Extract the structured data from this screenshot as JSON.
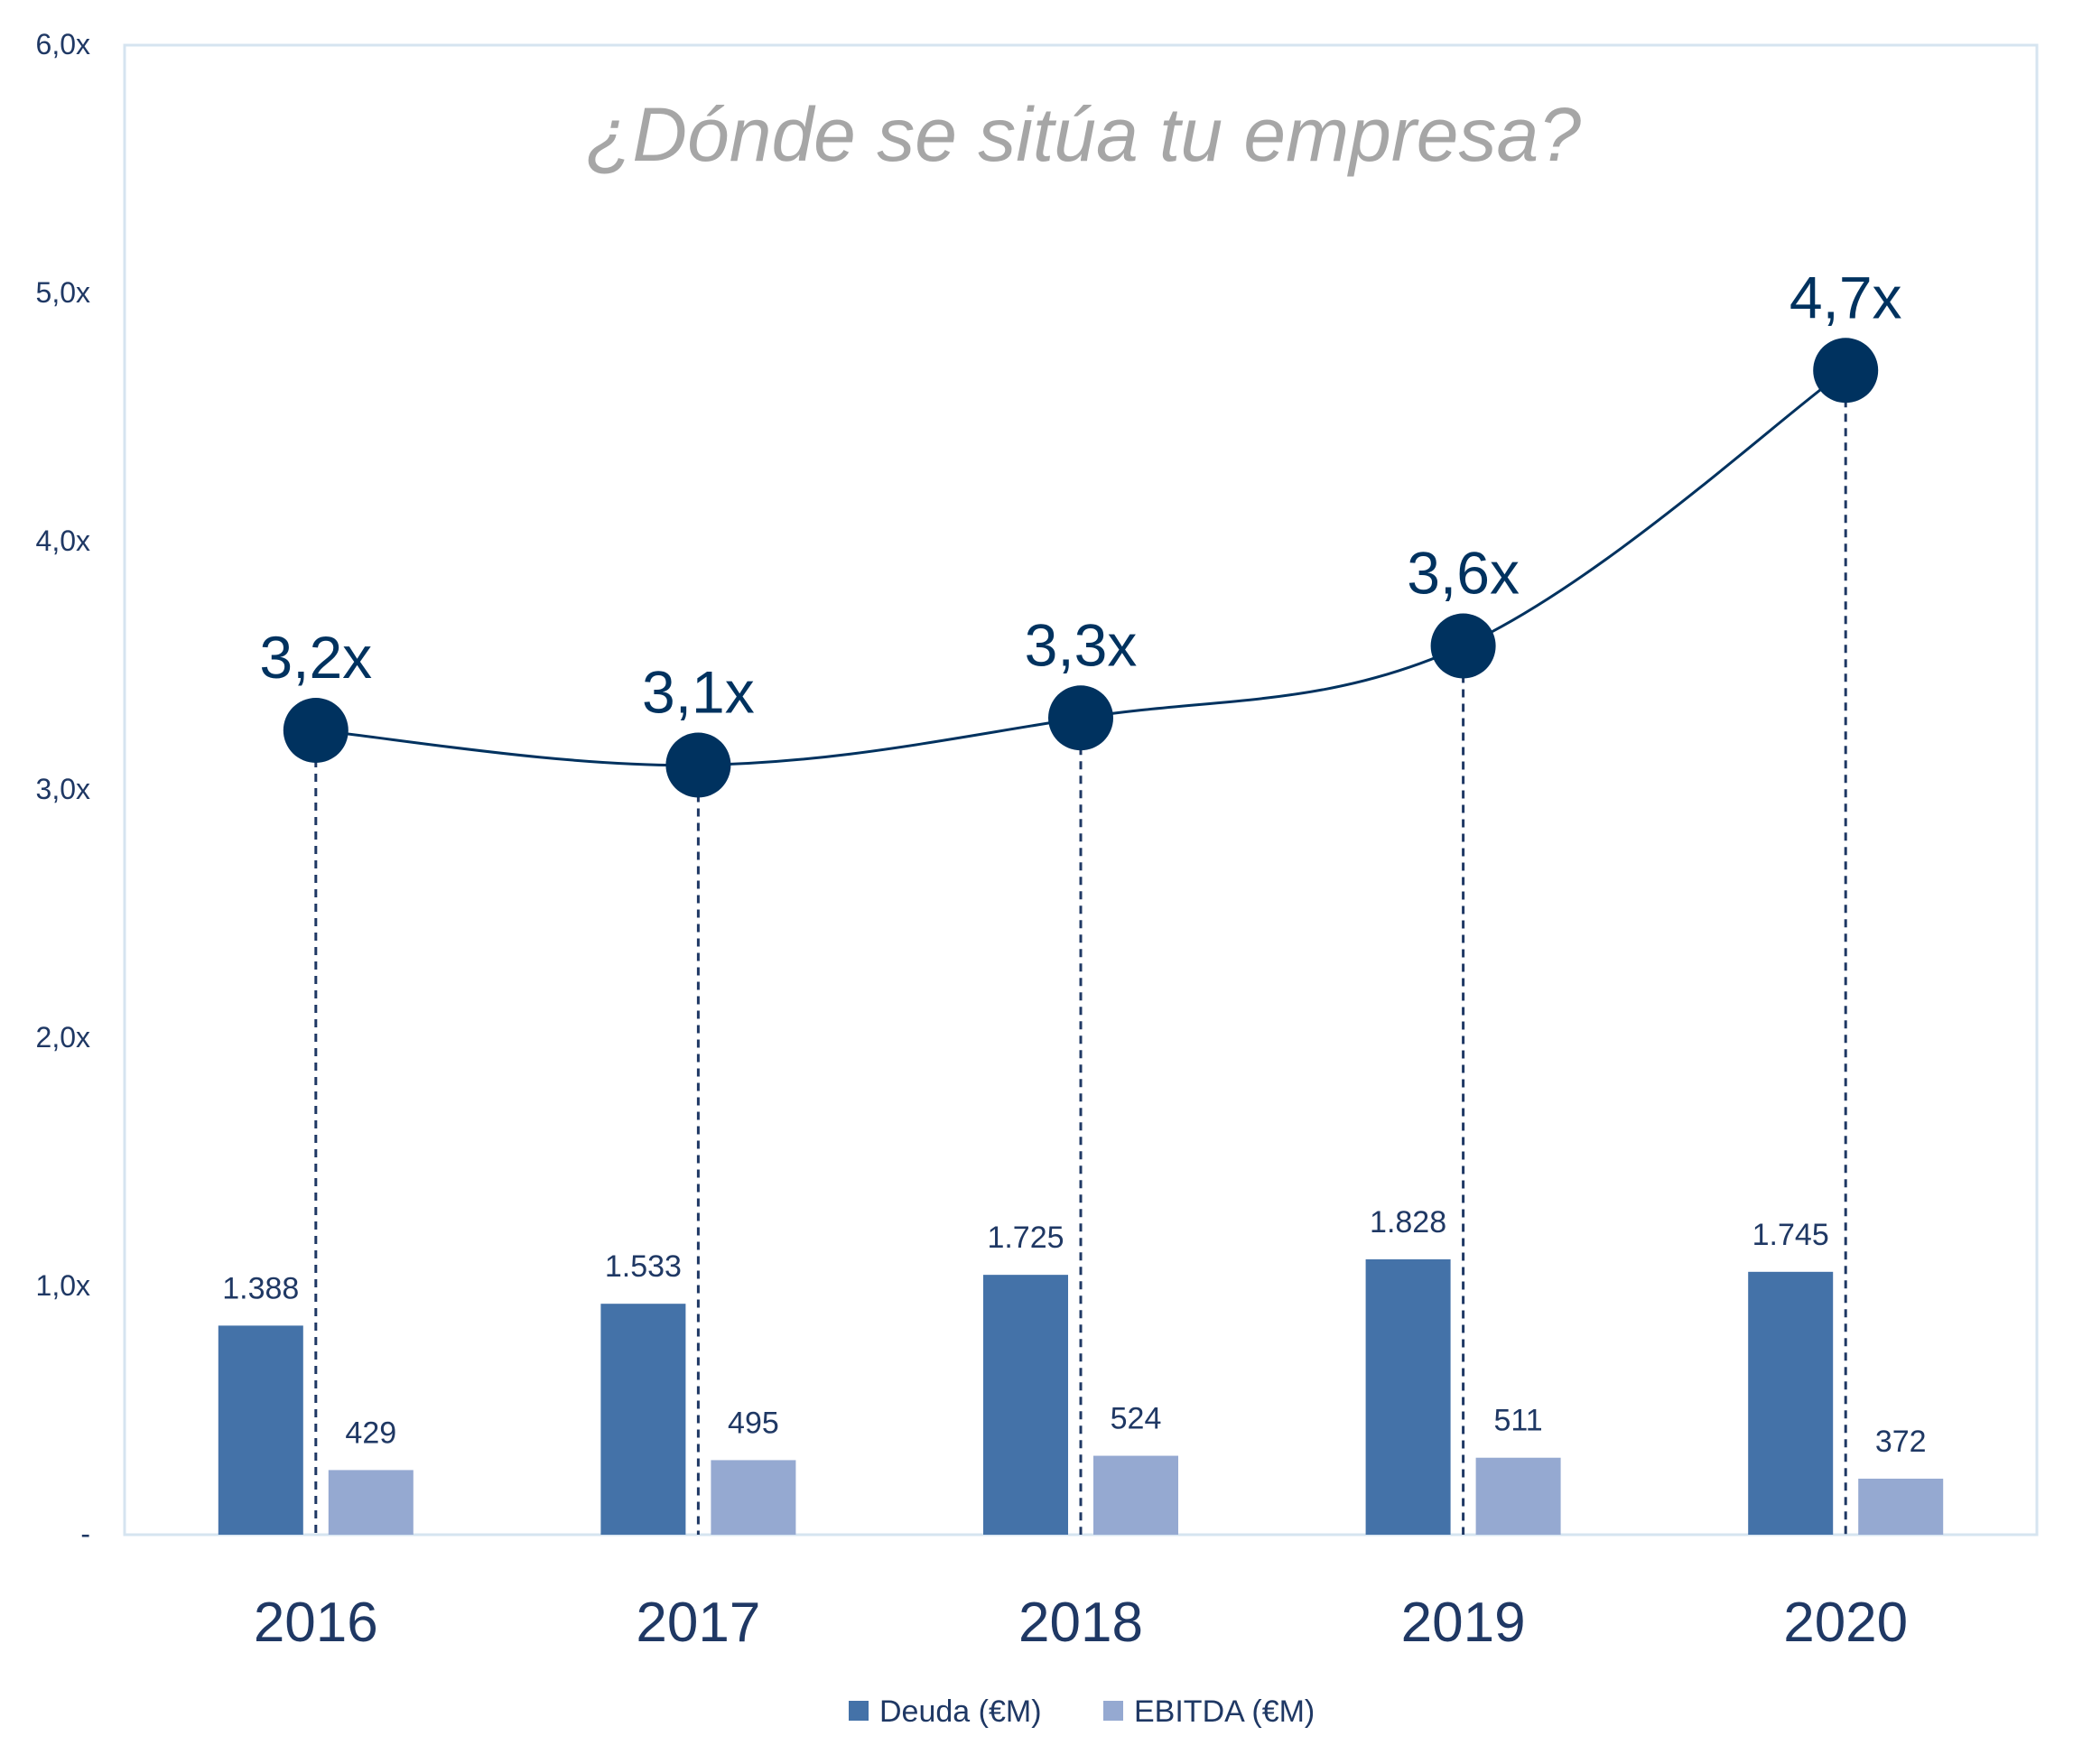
{
  "chart_data": {
    "type": "bar",
    "title": "¿Dónde se sitúa tu empresa?",
    "categories": [
      "2016",
      "2017",
      "2018",
      "2019",
      "2020"
    ],
    "y_axis": {
      "ylim": [
        0,
        6
      ],
      "ticks": [
        0,
        1,
        2,
        3,
        4,
        5,
        6
      ],
      "tick_labels": [
        "-",
        "1,0x",
        "2,0x",
        "3,0x",
        "4,0x",
        "5,0x",
        "6,0x"
      ]
    },
    "series": [
      {
        "name": "Deuda (€M)",
        "type": "bar",
        "values": [
          1388,
          1533,
          1725,
          1828,
          1745
        ],
        "labels": [
          "1.388",
          "1.533",
          "1.725",
          "1.828",
          "1.745"
        ],
        "color": "#4472A8"
      },
      {
        "name": "EBITDA (€M)",
        "type": "bar",
        "values": [
          429,
          495,
          524,
          511,
          372
        ],
        "labels": [
          "429",
          "495",
          "524",
          "511",
          "372"
        ],
        "color": "#95A9D1"
      },
      {
        "type": "line",
        "values": [
          3.24,
          3.1,
          3.29,
          3.58,
          4.69
        ],
        "labels": [
          "3,2x",
          "3,1x",
          "3,3x",
          "3,6x",
          "4,7x"
        ],
        "color": "#00325F"
      }
    ],
    "legend": {
      "placement": "bottom",
      "entries": [
        "Deuda (€M)",
        "EBITDA (€M)"
      ]
    },
    "grid": false,
    "colors": {
      "title": "#A6A6A6",
      "axis_text": "#1F3864",
      "plot_border": "#D6E4F0"
    }
  }
}
